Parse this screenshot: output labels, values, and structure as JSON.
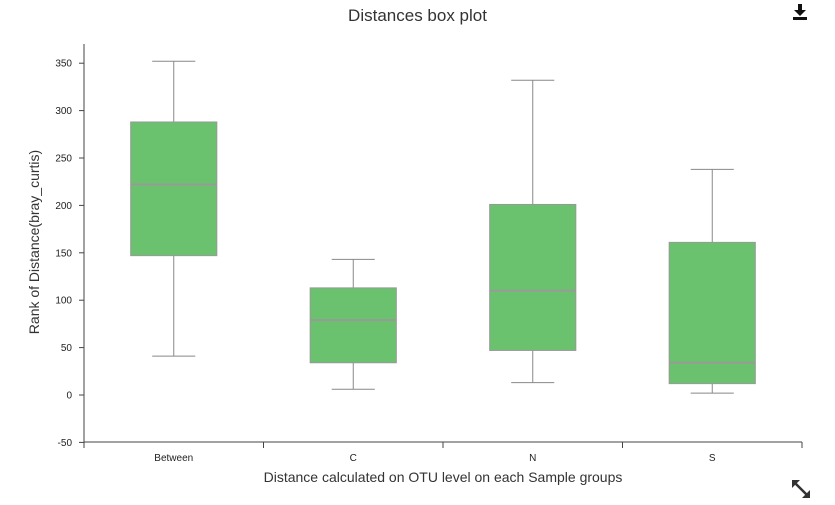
{
  "toolbar": {
    "download_icon": "download-icon",
    "fullscreen_icon": "expand-arrows-icon"
  },
  "chart_data": {
    "type": "boxplot",
    "title": "Distances box plot",
    "xlabel": "Distance calculated on OTU level on each Sample groups",
    "ylabel": "Rank of Distance(bray_curtis)",
    "categories": [
      "Between",
      "C",
      "N",
      "S"
    ],
    "ylim": [
      -50,
      370
    ],
    "yticks": [
      -50,
      0,
      50,
      100,
      150,
      200,
      250,
      300,
      350
    ],
    "grid": false,
    "legend": "none",
    "boxes": [
      {
        "category": "Between",
        "min": 41,
        "q1": 147,
        "median": 222,
        "q3": 288,
        "max": 352
      },
      {
        "category": "C",
        "min": 6,
        "q1": 34,
        "median": 79,
        "q3": 113,
        "max": 143
      },
      {
        "category": "N",
        "min": 13,
        "q1": 47,
        "median": 110,
        "q3": 201,
        "max": 332
      },
      {
        "category": "S",
        "min": 2,
        "q1": 12,
        "median": 34,
        "q3": 161,
        "max": 238
      }
    ],
    "colors": {
      "box_fill": "#6bc26e",
      "box_stroke": "#999999",
      "median": "#999999",
      "whisker": "#888888",
      "axis": "#444444"
    }
  }
}
